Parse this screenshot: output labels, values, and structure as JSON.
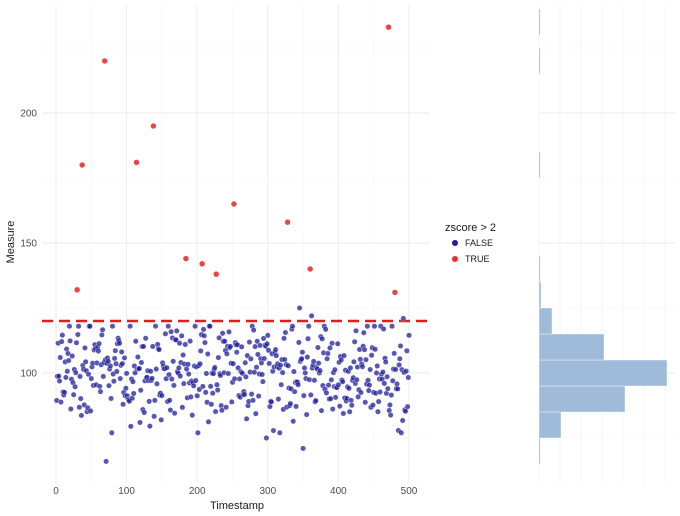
{
  "chart_data": {
    "type": "scatter",
    "xlabel": "Timestamp",
    "ylabel": "Measure",
    "xlim": [
      -20,
      525
    ],
    "ylim": [
      63,
      240
    ],
    "x_ticks": [
      0,
      100,
      200,
      300,
      400,
      500
    ],
    "y_ticks": [
      100,
      150,
      200
    ],
    "threshold_line": {
      "y": 120,
      "style": "dashed",
      "color": "#e41a1c"
    },
    "legend": {
      "title": "zscore > 2",
      "entries": [
        {
          "label": "FALSE",
          "color": "#1f1f99"
        },
        {
          "label": "TRUE",
          "color": "#e8312f"
        }
      ]
    },
    "outliers": [
      {
        "x": 30,
        "y": 132
      },
      {
        "x": 37,
        "y": 180
      },
      {
        "x": 69,
        "y": 220
      },
      {
        "x": 114,
        "y": 181
      },
      {
        "x": 138,
        "y": 195
      },
      {
        "x": 184,
        "y": 144
      },
      {
        "x": 207,
        "y": 142
      },
      {
        "x": 227,
        "y": 138
      },
      {
        "x": 252,
        "y": 165
      },
      {
        "x": 328,
        "y": 158
      },
      {
        "x": 360,
        "y": 140
      },
      {
        "x": 471,
        "y": 233
      },
      {
        "x": 480,
        "y": 131
      }
    ],
    "normal_points": {
      "count": 487,
      "x_range": [
        1,
        500
      ],
      "mean": 100,
      "sd": 10,
      "extremes": [
        {
          "x": 71,
          "y": 66
        },
        {
          "x": 298,
          "y": 75
        },
        {
          "x": 350,
          "y": 71
        },
        {
          "x": 345,
          "y": 125
        },
        {
          "x": 362,
          "y": 122
        },
        {
          "x": 492,
          "y": 121
        }
      ]
    },
    "marginal_histogram": {
      "orientation": "horizontal",
      "color": "#9fbbd9",
      "bin_width": 10,
      "bins": [
        {
          "lo": 65,
          "hi": 75,
          "count": 1
        },
        {
          "lo": 75,
          "hi": 85,
          "count": 22
        },
        {
          "lo": 85,
          "hi": 95,
          "count": 86
        },
        {
          "lo": 95,
          "hi": 105,
          "count": 128
        },
        {
          "lo": 105,
          "hi": 115,
          "count": 65
        },
        {
          "lo": 115,
          "hi": 125,
          "count": 13
        },
        {
          "lo": 125,
          "hi": 135,
          "count": 2
        },
        {
          "lo": 135,
          "hi": 145,
          "count": 1
        },
        {
          "lo": 175,
          "hi": 185,
          "count": 1
        },
        {
          "lo": 215,
          "hi": 225,
          "count": 1
        },
        {
          "lo": 230,
          "hi": 240,
          "count": 1
        }
      ]
    }
  }
}
